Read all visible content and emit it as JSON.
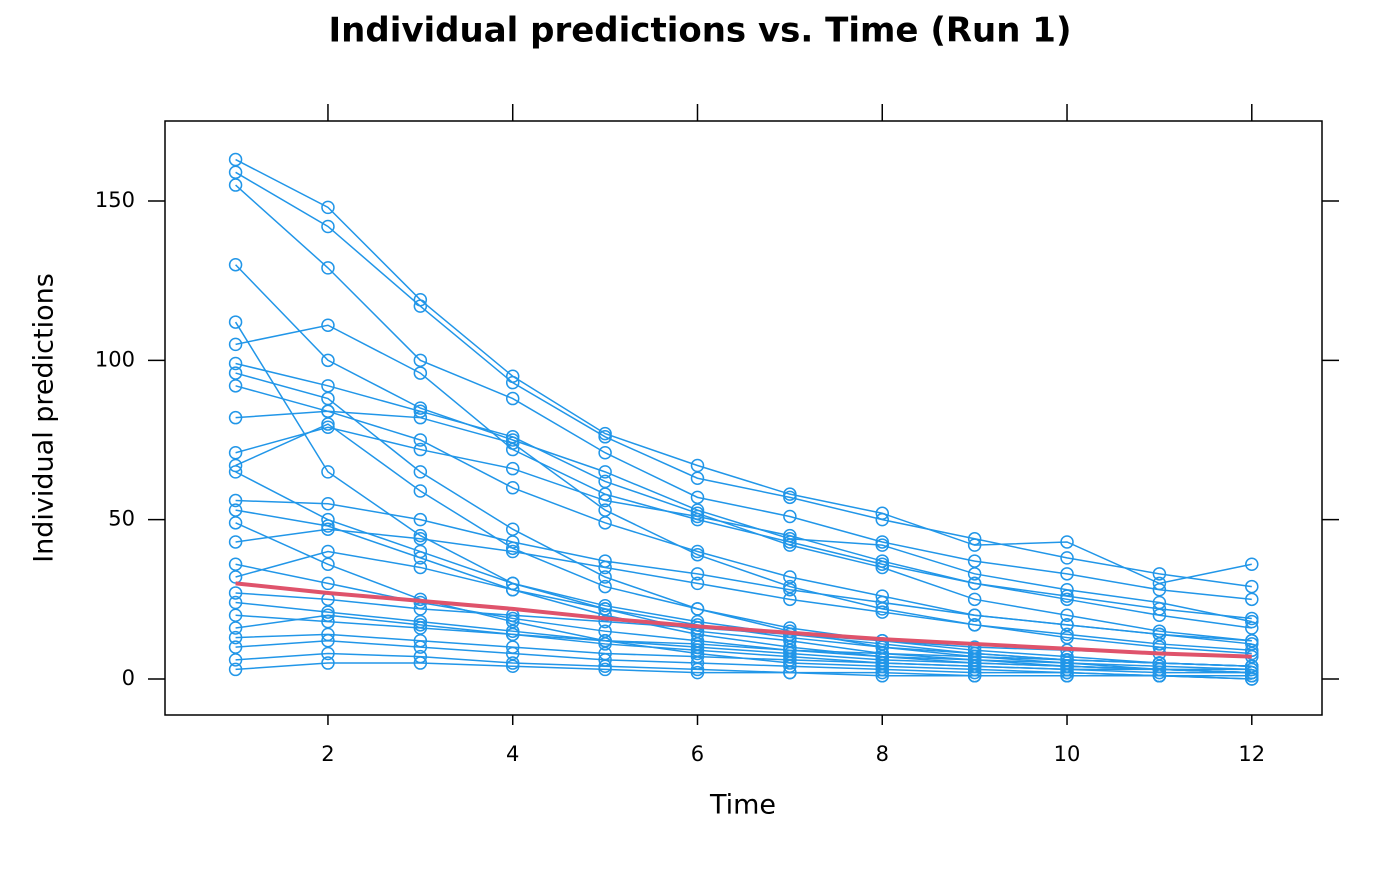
{
  "chart_data": {
    "type": "line",
    "title": "Individual predictions vs. Time (Run 1)",
    "x_label": "Time",
    "y_label": "Individual predictions",
    "x": [
      1,
      2,
      3,
      4,
      5,
      6,
      7,
      8,
      9,
      10,
      11,
      12
    ],
    "color": "#2196e8",
    "series": [
      {
        "values": [
          163,
          148,
          119,
          95,
          77,
          67,
          58,
          52,
          42,
          43,
          30,
          36
        ]
      },
      {
        "values": [
          159,
          142,
          117,
          93,
          76,
          63,
          57,
          50,
          44,
          38,
          33,
          29
        ]
      },
      {
        "values": [
          155,
          129,
          100,
          88,
          71,
          57,
          51,
          43,
          37,
          33,
          28,
          25
        ]
      },
      {
        "values": [
          130,
          100,
          85,
          75,
          65,
          53,
          44,
          42,
          33,
          28,
          24,
          18
        ]
      },
      {
        "values": [
          112,
          65,
          45,
          30,
          22,
          15,
          12,
          8,
          6,
          4,
          3,
          2
        ]
      },
      {
        "values": [
          105,
          111,
          96,
          72,
          58,
          50,
          43,
          36,
          30,
          25,
          20,
          16
        ]
      },
      {
        "values": [
          99,
          92,
          84,
          76,
          62,
          52,
          42,
          35,
          25,
          20,
          15,
          12
        ]
      },
      {
        "values": [
          96,
          88,
          65,
          47,
          32,
          22,
          15,
          10,
          7,
          5,
          3,
          2
        ]
      },
      {
        "values": [
          92,
          84,
          75,
          60,
          49,
          40,
          32,
          26,
          20,
          17,
          14,
          11
        ]
      },
      {
        "values": [
          82,
          84,
          82,
          74,
          53,
          39,
          29,
          22,
          17,
          13,
          10,
          8
        ]
      },
      {
        "values": [
          71,
          79,
          72,
          66,
          56,
          51,
          45,
          37,
          30,
          26,
          22,
          19
        ]
      },
      {
        "values": [
          67,
          80,
          59,
          41,
          29,
          22,
          16,
          12,
          9,
          7,
          5,
          4
        ]
      },
      {
        "values": [
          65,
          50,
          40,
          30,
          23,
          18,
          14,
          11,
          8,
          6,
          5,
          4
        ]
      },
      {
        "values": [
          56,
          55,
          50,
          43,
          37,
          33,
          28,
          24,
          20,
          17,
          14,
          12
        ]
      },
      {
        "values": [
          53,
          48,
          38,
          28,
          20,
          14,
          10,
          7,
          5,
          4,
          3,
          2
        ]
      },
      {
        "values": [
          49,
          36,
          25,
          18,
          12,
          8,
          5,
          4,
          3,
          2,
          1,
          1
        ]
      },
      {
        "values": [
          43,
          47,
          44,
          40,
          35,
          30,
          25,
          21,
          17,
          14,
          11,
          9
        ]
      },
      {
        "values": [
          36,
          30,
          24,
          19,
          15,
          12,
          9,
          7,
          6,
          5,
          4,
          3
        ]
      },
      {
        "values": [
          32,
          40,
          35,
          28,
          22,
          17,
          13,
          10,
          8,
          6,
          5,
          4
        ]
      },
      {
        "values": [
          27,
          25,
          22,
          20,
          18,
          16,
          14,
          12,
          10,
          9,
          8,
          7
        ]
      },
      {
        "values": [
          24,
          21,
          18,
          15,
          12,
          10,
          8,
          6,
          5,
          4,
          3,
          3
        ]
      },
      {
        "values": [
          20,
          18,
          16,
          14,
          12,
          11,
          9,
          8,
          7,
          6,
          5,
          4
        ]
      },
      {
        "values": [
          16,
          20,
          17,
          14,
          11,
          9,
          7,
          5,
          4,
          3,
          2,
          2
        ]
      },
      {
        "values": [
          13,
          14,
          12,
          10,
          8,
          7,
          6,
          5,
          4,
          3,
          3,
          2
        ]
      },
      {
        "values": [
          10,
          12,
          10,
          8,
          6,
          5,
          4,
          3,
          2,
          2,
          1,
          1
        ]
      },
      {
        "values": [
          6,
          8,
          7,
          5,
          4,
          3,
          2,
          2,
          1,
          1,
          1,
          0
        ]
      },
      {
        "values": [
          3,
          5,
          5,
          4,
          3,
          2,
          2,
          1,
          1,
          1,
          1,
          0
        ]
      }
    ],
    "trend": {
      "color": "#df536b",
      "values": [
        30,
        27,
        24.5,
        22,
        19,
        16.5,
        14.5,
        12.5,
        11,
        9.5,
        8,
        7
      ]
    },
    "xlim": [
      0.236,
      12.76
    ],
    "xticks": [
      2,
      4,
      6,
      8,
      10,
      12
    ],
    "ylim": [
      -11.3,
      175.1
    ],
    "yticks": [
      0,
      50,
      100,
      150
    ]
  }
}
